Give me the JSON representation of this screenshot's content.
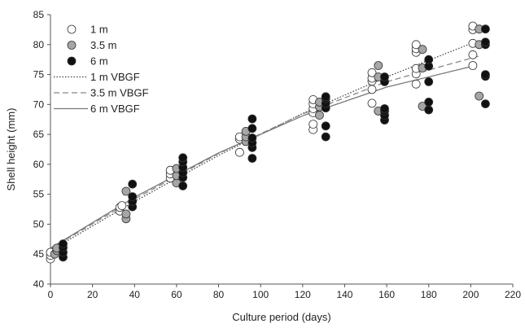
{
  "chart_data": {
    "type": "scatter",
    "title": "",
    "xlabel": "Culture period (days)",
    "ylabel": "Shell height (mm)",
    "xlim": [
      0,
      220
    ],
    "ylim": [
      40,
      85
    ],
    "xticks": [
      0,
      20,
      40,
      60,
      80,
      100,
      120,
      140,
      160,
      180,
      200,
      220
    ],
    "yticks": [
      40,
      45,
      50,
      55,
      60,
      65,
      70,
      75,
      80,
      85
    ],
    "grid": false,
    "legend_position": "top-left",
    "series": [
      {
        "name": "1 m",
        "marker": "open-circle",
        "color": "#ffffff",
        "points": [
          [
            0,
            44.2
          ],
          [
            0,
            44.8
          ],
          [
            0,
            45.3
          ],
          [
            33,
            52.2
          ],
          [
            33,
            52.8
          ],
          [
            34,
            53.1
          ],
          [
            57,
            57.7
          ],
          [
            57,
            58.4
          ],
          [
            57,
            59.0
          ],
          [
            90,
            62.0
          ],
          [
            90,
            64.2
          ],
          [
            90,
            64.6
          ],
          [
            125,
            65.8
          ],
          [
            125,
            66.7
          ],
          [
            125,
            68.6
          ],
          [
            125,
            69.3
          ],
          [
            125,
            70.1
          ],
          [
            125,
            70.8
          ],
          [
            153,
            70.2
          ],
          [
            153,
            72.5
          ],
          [
            153,
            73.9
          ],
          [
            153,
            74.4
          ],
          [
            153,
            75.3
          ],
          [
            174,
            73.4
          ],
          [
            174,
            75.1
          ],
          [
            174,
            76.0
          ],
          [
            174,
            78.7
          ],
          [
            174,
            79.3
          ],
          [
            174,
            80.0
          ],
          [
            201,
            76.5
          ],
          [
            201,
            78.3
          ],
          [
            201,
            80.2
          ],
          [
            201,
            82.5
          ],
          [
            201,
            83.1
          ]
        ]
      },
      {
        "name": "3.5 m",
        "marker": "filled-circle",
        "color": "#a6a6a6",
        "points": [
          [
            2,
            45.0
          ],
          [
            3,
            45.6
          ],
          [
            3,
            46.0
          ],
          [
            36,
            50.9
          ],
          [
            36,
            51.7
          ],
          [
            36,
            55.5
          ],
          [
            60,
            56.9
          ],
          [
            60,
            58.1
          ],
          [
            60,
            59.3
          ],
          [
            93,
            63.8
          ],
          [
            93,
            64.6
          ],
          [
            93,
            65.5
          ],
          [
            128,
            68.2
          ],
          [
            128,
            69.6
          ],
          [
            128,
            70.4
          ],
          [
            156,
            68.9
          ],
          [
            156,
            74.6
          ],
          [
            156,
            76.5
          ],
          [
            177,
            69.7
          ],
          [
            177,
            76.1
          ],
          [
            177,
            79.2
          ],
          [
            204,
            71.4
          ],
          [
            204,
            80.0
          ],
          [
            204,
            82.6
          ]
        ]
      },
      {
        "name": "6 m",
        "marker": "filled-circle",
        "color": "#111111",
        "points": [
          [
            6,
            44.5
          ],
          [
            6,
            45.3
          ],
          [
            6,
            46.1
          ],
          [
            6,
            46.7
          ],
          [
            39,
            52.9
          ],
          [
            39,
            53.8
          ],
          [
            39,
            54.6
          ],
          [
            39,
            56.7
          ],
          [
            63,
            56.4
          ],
          [
            63,
            57.8
          ],
          [
            63,
            58.6
          ],
          [
            63,
            59.5
          ],
          [
            63,
            60.4
          ],
          [
            63,
            61.1
          ],
          [
            96,
            61.0
          ],
          [
            96,
            62.8
          ],
          [
            96,
            63.6
          ],
          [
            96,
            64.4
          ],
          [
            96,
            66.0
          ],
          [
            96,
            67.6
          ],
          [
            131,
            64.6
          ],
          [
            131,
            66.4
          ],
          [
            131,
            69.4
          ],
          [
            131,
            70.2
          ],
          [
            131,
            71.0
          ],
          [
            131,
            71.3
          ],
          [
            159,
            67.4
          ],
          [
            159,
            68.2
          ],
          [
            159,
            68.9
          ],
          [
            159,
            69.3
          ],
          [
            159,
            73.8
          ],
          [
            159,
            74.6
          ],
          [
            180,
            69.1
          ],
          [
            180,
            70.4
          ],
          [
            180,
            73.8
          ],
          [
            180,
            76.4
          ],
          [
            180,
            77.5
          ],
          [
            207,
            70.1
          ],
          [
            207,
            74.7
          ],
          [
            207,
            75.0
          ],
          [
            207,
            80.0
          ],
          [
            207,
            80.4
          ],
          [
            207,
            82.6
          ]
        ]
      }
    ],
    "fits": [
      {
        "name": "1 m VBGF",
        "style": "dotted",
        "color": "#444444",
        "points": [
          [
            0,
            45.6
          ],
          [
            40,
            53.8
          ],
          [
            80,
            61.5
          ],
          [
            120,
            68.5
          ],
          [
            160,
            74.6
          ],
          [
            201,
            80.3
          ]
        ]
      },
      {
        "name": "3.5 m VBGF",
        "style": "dashed",
        "color": "#888888",
        "points": [
          [
            0,
            45.9
          ],
          [
            40,
            54.2
          ],
          [
            80,
            61.8
          ],
          [
            120,
            68.4
          ],
          [
            160,
            73.8
          ],
          [
            204,
            78.1
          ]
        ]
      },
      {
        "name": "6 m VBGF",
        "style": "solid",
        "color": "#777777",
        "points": [
          [
            0,
            46.0
          ],
          [
            40,
            54.5
          ],
          [
            80,
            61.9
          ],
          [
            120,
            68.1
          ],
          [
            160,
            72.9
          ],
          [
            201,
            76.4
          ]
        ]
      }
    ]
  }
}
